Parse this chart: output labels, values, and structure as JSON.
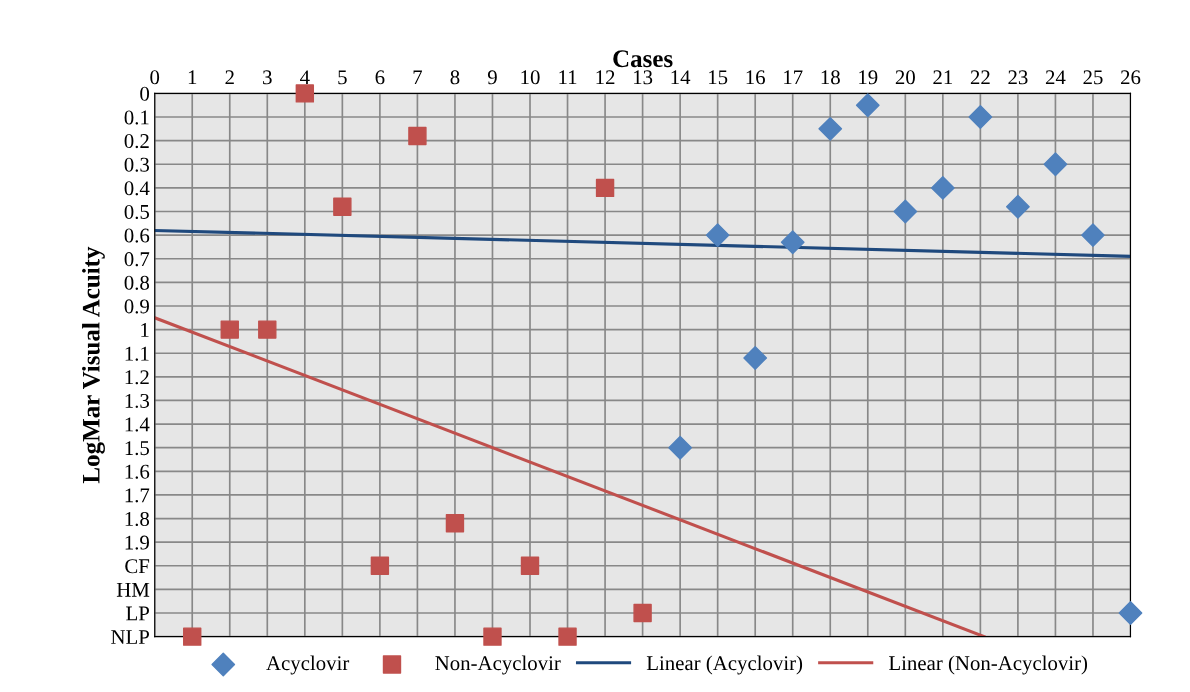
{
  "chart_data": {
    "type": "scatter",
    "xlabel": "Cases",
    "ylabel": "LogMar Visual Acuity",
    "xlim": [
      0,
      26
    ],
    "xticks": [
      0,
      1,
      2,
      3,
      4,
      5,
      6,
      7,
      8,
      9,
      10,
      11,
      12,
      13,
      14,
      15,
      16,
      17,
      18,
      19,
      20,
      21,
      22,
      23,
      24,
      25,
      26
    ],
    "ylim": [
      2.3,
      0
    ],
    "yticks": [
      0,
      0.1,
      0.2,
      0.3,
      0.4,
      0.5,
      0.6,
      0.7,
      0.8,
      0.9,
      1,
      1.1,
      1.2,
      1.3,
      1.4,
      1.5,
      1.6,
      1.7,
      1.8,
      1.9,
      {
        "value": 2.0,
        "label": "CF"
      },
      {
        "value": 2.1,
        "label": "HM"
      },
      {
        "value": 2.2,
        "label": "LP"
      },
      {
        "value": 2.3,
        "label": "NLP"
      }
    ],
    "grid": true,
    "legend": "bottom",
    "series": [
      {
        "name": "Acyclovir",
        "marker": "diamond",
        "color": "#4f81bd",
        "x": [
          14,
          15,
          16,
          17,
          18,
          19,
          20,
          21,
          22,
          23,
          24,
          25,
          26
        ],
        "values": [
          1.5,
          0.6,
          1.12,
          0.63,
          0.15,
          0.05,
          0.5,
          0.4,
          0.1,
          0.48,
          0.3,
          0.6,
          2.2
        ]
      },
      {
        "name": "Non-Acyclovir",
        "marker": "square",
        "color": "#c0504d",
        "x": [
          1,
          2,
          3,
          4,
          5,
          6,
          7,
          8,
          9,
          10,
          11,
          12,
          13
        ],
        "values": [
          2.3,
          1.0,
          1.0,
          0,
          0.48,
          2.0,
          0.18,
          1.82,
          2.3,
          2.0,
          2.3,
          0.4,
          2.2
        ]
      },
      {
        "name": "Linear (Acyclovir)",
        "type": "line",
        "marker": "none",
        "color": "#1f497d",
        "x": [
          0,
          26
        ],
        "values": [
          0.58,
          0.69
        ]
      },
      {
        "name": "Linear (Non-Acyclovir)",
        "type": "line",
        "marker": "none",
        "color": "#c0504d",
        "x": [
          0,
          22.1
        ],
        "values": [
          0.95,
          2.3
        ]
      }
    ]
  }
}
